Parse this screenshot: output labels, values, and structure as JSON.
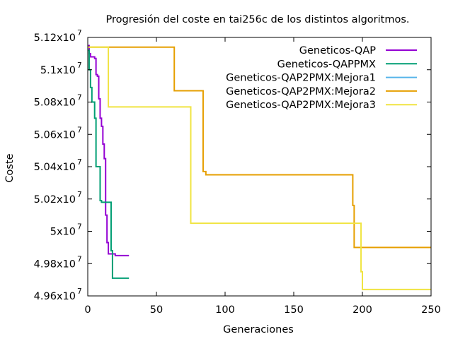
{
  "chart_data": {
    "type": "line",
    "title": "Progresión del coste en tai256c de los distintos algoritmos.",
    "xlabel": "Generaciones",
    "ylabel": "Coste",
    "xlim": [
      0,
      250
    ],
    "ylim": [
      49600000,
      51200000
    ],
    "grid": false,
    "legend_placement": "top-right",
    "x_ticks": [
      {
        "value": 0,
        "label": "0"
      },
      {
        "value": 50,
        "label": "50"
      },
      {
        "value": 100,
        "label": "100"
      },
      {
        "value": 150,
        "label": "150"
      },
      {
        "value": 200,
        "label": "200"
      },
      {
        "value": 250,
        "label": "250"
      }
    ],
    "y_ticks": [
      {
        "value": 49600000,
        "mantissa": "4.96x10",
        "exp": "7"
      },
      {
        "value": 49800000,
        "mantissa": "4.98x10",
        "exp": "7"
      },
      {
        "value": 50000000,
        "mantissa": "5x10",
        "exp": "7"
      },
      {
        "value": 50200000,
        "mantissa": "5.02x10",
        "exp": "7"
      },
      {
        "value": 50400000,
        "mantissa": "5.04x10",
        "exp": "7"
      },
      {
        "value": 50600000,
        "mantissa": "5.06x10",
        "exp": "7"
      },
      {
        "value": 50800000,
        "mantissa": "5.08x10",
        "exp": "7"
      },
      {
        "value": 51000000,
        "mantissa": "5.1x10",
        "exp": "7"
      },
      {
        "value": 51200000,
        "mantissa": "5.12x10",
        "exp": "7"
      }
    ],
    "series": [
      {
        "name": "Geneticos-QAP",
        "color": "#9400d3",
        "step": true,
        "points": [
          [
            0,
            51150000
          ],
          [
            1,
            51100000
          ],
          [
            2,
            51080000
          ],
          [
            5,
            51070000
          ],
          [
            6,
            50970000
          ],
          [
            7,
            50960000
          ],
          [
            8,
            50820000
          ],
          [
            9,
            50700000
          ],
          [
            10,
            50650000
          ],
          [
            11,
            50540000
          ],
          [
            12,
            50450000
          ],
          [
            13,
            50100000
          ],
          [
            14,
            49930000
          ],
          [
            15,
            49860000
          ],
          [
            20,
            49850000
          ],
          [
            30,
            49850000
          ]
        ]
      },
      {
        "name": "Geneticos-QAPPMX",
        "color": "#009e73",
        "step": true,
        "points": [
          [
            0,
            51120000
          ],
          [
            1,
            51000000
          ],
          [
            2,
            50890000
          ],
          [
            3,
            50800000
          ],
          [
            5,
            50700000
          ],
          [
            6,
            50400000
          ],
          [
            9,
            50190000
          ],
          [
            10,
            50180000
          ],
          [
            14,
            50180000
          ],
          [
            17,
            49880000
          ],
          [
            18,
            49710000
          ],
          [
            30,
            49710000
          ]
        ]
      },
      {
        "name": "Geneticos-QAP2PMX:Mejora1",
        "color": "#56b4e9",
        "step": true,
        "points": []
      },
      {
        "name": "Geneticos-QAP2PMX:Mejora2",
        "color": "#e69f00",
        "step": true,
        "points": [
          [
            0,
            51140000
          ],
          [
            63,
            50870000
          ],
          [
            84,
            50370000
          ],
          [
            86,
            50350000
          ],
          [
            193,
            50160000
          ],
          [
            194,
            49900000
          ],
          [
            250,
            49900000
          ]
        ]
      },
      {
        "name": "Geneticos-QAP2PMX:Mejora3",
        "color": "#f0e442",
        "step": true,
        "points": [
          [
            0,
            51140000
          ],
          [
            15,
            50770000
          ],
          [
            75,
            50050000
          ],
          [
            199,
            49750000
          ],
          [
            200,
            49640000
          ],
          [
            250,
            49640000
          ]
        ]
      }
    ]
  }
}
